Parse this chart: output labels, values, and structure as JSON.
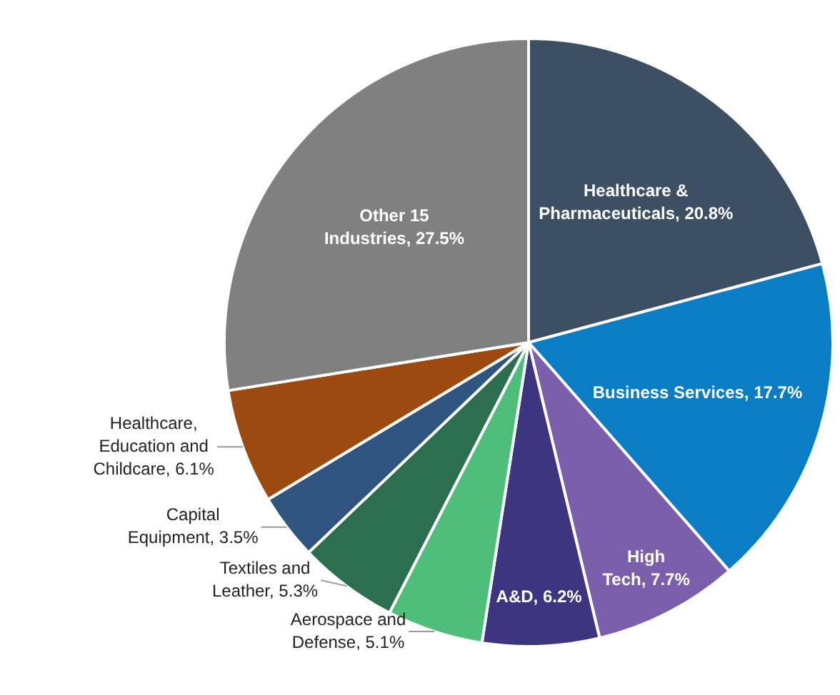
{
  "chart_data": {
    "type": "pie",
    "categories": [
      "Healthcare & Pharmaceuticals",
      "Business Services",
      "High Tech",
      "A&D",
      "Aerospace and Defense",
      "Textiles and Leather",
      "Capital Equipment",
      "Healthcare, Education and Childcare",
      "Other 15 Industries"
    ],
    "values": [
      20.8,
      17.7,
      7.7,
      6.2,
      5.1,
      5.3,
      3.5,
      6.1,
      27.5
    ],
    "value_labels": [
      "20.8%",
      "17.7%",
      "7.7%",
      "6.2%",
      "5.1%",
      "5.3%",
      "3.5%",
      "6.1%",
      "27.5%"
    ],
    "colors": [
      "#3c4f63",
      "#0a7dc4",
      "#7b5fad",
      "#3d3580",
      "#4dbf7a",
      "#2b6f4f",
      "#2f5480",
      "#9c4a10",
      "#808080"
    ],
    "legend": false
  }
}
